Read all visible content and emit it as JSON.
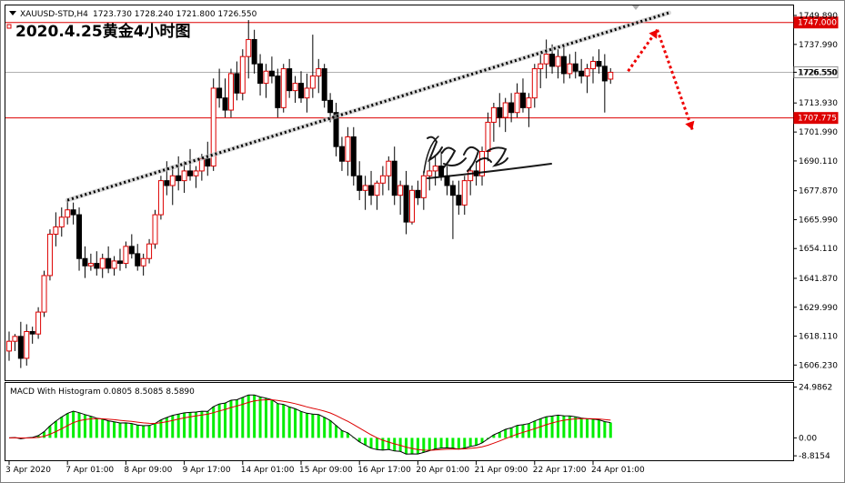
{
  "chart_data": {
    "type": "candlestick",
    "symbol_line": "XAUUSD-STD,H4",
    "ohlc_readout": "1723.730 1728.240 1721.800 1726.550",
    "headline": "2020.4.25黄金4小时图",
    "price_axis": {
      "range": [
        1600,
        1754
      ],
      "ticks": [
        "1749.890",
        "1737.990",
        "1726.550",
        "1713.930",
        "1701.990",
        "1690.110",
        "1677.870",
        "1665.990",
        "1654.110",
        "1641.870",
        "1629.990",
        "1618.110",
        "1606.230"
      ],
      "tick_values": [
        1749.89,
        1737.99,
        1726.55,
        1713.93,
        1701.99,
        1690.11,
        1677.87,
        1665.99,
        1654.11,
        1641.87,
        1629.99,
        1618.11,
        1606.23
      ]
    },
    "price_levels": [
      {
        "label": "1747.000",
        "value": 1747.0,
        "color": "#dd0000"
      },
      {
        "label": "1726.550",
        "value": 1726.55,
        "color": "#b0b0b0"
      },
      {
        "label": "1707.775",
        "value": 1707.775,
        "color": "#dd0000"
      }
    ],
    "time_axis_labels": [
      "3 Apr 2020",
      "7 Apr 01:00",
      "8 Apr 09:00",
      "9 Apr 17:00",
      "14 Apr 01:00",
      "15 Apr 09:00",
      "16 Apr 17:00",
      "20 Apr 01:00",
      "21 Apr 09:00",
      "22 Apr 17:00",
      "24 Apr 01:00"
    ],
    "time_axis_bar_index": [
      0,
      10,
      20,
      30,
      40,
      50,
      60,
      70,
      80,
      90,
      100
    ],
    "trend_line": {
      "from": {
        "bar": 10,
        "price": 1674
      },
      "to": {
        "bar": 113,
        "price": 1751
      }
    },
    "forecast_path": {
      "points": [
        {
          "bar": 106,
          "price": 1727
        },
        {
          "bar": 111,
          "price": 1744
        },
        {
          "bar": 117,
          "price": 1703
        }
      ]
    },
    "candles": [
      [
        1612,
        1620,
        1608,
        1616
      ],
      [
        1616,
        1619,
        1612,
        1618
      ],
      [
        1618,
        1624,
        1605,
        1609
      ],
      [
        1609,
        1623,
        1606,
        1620
      ],
      [
        1620,
        1622,
        1615,
        1619
      ],
      [
        1619,
        1630,
        1617,
        1628
      ],
      [
        1628,
        1645,
        1626,
        1643
      ],
      [
        1643,
        1662,
        1641,
        1660
      ],
      [
        1660,
        1669,
        1655,
        1663
      ],
      [
        1663,
        1671,
        1659,
        1667
      ],
      [
        1667,
        1674,
        1664,
        1670
      ],
      [
        1670,
        1673,
        1664,
        1668
      ],
      [
        1668,
        1671,
        1645,
        1650
      ],
      [
        1650,
        1655,
        1642,
        1647
      ],
      [
        1647,
        1652,
        1645,
        1648
      ],
      [
        1648,
        1653,
        1643,
        1646
      ],
      [
        1646,
        1652,
        1642,
        1650
      ],
      [
        1650,
        1655,
        1644,
        1646
      ],
      [
        1646,
        1651,
        1643,
        1649
      ],
      [
        1649,
        1654,
        1645,
        1648
      ],
      [
        1648,
        1657,
        1646,
        1655
      ],
      [
        1655,
        1660,
        1650,
        1652
      ],
      [
        1652,
        1656,
        1645,
        1647
      ],
      [
        1647,
        1652,
        1643,
        1650
      ],
      [
        1650,
        1658,
        1648,
        1656
      ],
      [
        1656,
        1670,
        1654,
        1668
      ],
      [
        1668,
        1684,
        1666,
        1682
      ],
      [
        1682,
        1690,
        1676,
        1680
      ],
      [
        1680,
        1688,
        1672,
        1684
      ],
      [
        1684,
        1692,
        1678,
        1682
      ],
      [
        1682,
        1690,
        1677,
        1686
      ],
      [
        1686,
        1695,
        1682,
        1684
      ],
      [
        1684,
        1688,
        1679,
        1686
      ],
      [
        1686,
        1693,
        1682,
        1691
      ],
      [
        1691,
        1698,
        1684,
        1688
      ],
      [
        1688,
        1724,
        1686,
        1720
      ],
      [
        1720,
        1728,
        1712,
        1716
      ],
      [
        1716,
        1724,
        1708,
        1711
      ],
      [
        1711,
        1728,
        1708,
        1726
      ],
      [
        1726,
        1731,
        1715,
        1718
      ],
      [
        1718,
        1736,
        1715,
        1733
      ],
      [
        1733,
        1748,
        1724,
        1740
      ],
      [
        1740,
        1744,
        1726,
        1730
      ],
      [
        1730,
        1734,
        1717,
        1722
      ],
      [
        1722,
        1730,
        1716,
        1727
      ],
      [
        1727,
        1733,
        1722,
        1725
      ],
      [
        1725,
        1728,
        1708,
        1712
      ],
      [
        1712,
        1730,
        1710,
        1728
      ],
      [
        1728,
        1732,
        1716,
        1719
      ],
      [
        1719,
        1725,
        1714,
        1722
      ],
      [
        1722,
        1727,
        1714,
        1716
      ],
      [
        1716,
        1726,
        1710,
        1720
      ],
      [
        1720,
        1742,
        1716,
        1725
      ],
      [
        1725,
        1732,
        1718,
        1728
      ],
      [
        1728,
        1730,
        1712,
        1715
      ],
      [
        1715,
        1718,
        1706,
        1710
      ],
      [
        1710,
        1714,
        1692,
        1696
      ],
      [
        1696,
        1700,
        1686,
        1690
      ],
      [
        1690,
        1704,
        1684,
        1700
      ],
      [
        1700,
        1704,
        1680,
        1684
      ],
      [
        1684,
        1690,
        1674,
        1678
      ],
      [
        1678,
        1684,
        1670,
        1680
      ],
      [
        1680,
        1686,
        1672,
        1676
      ],
      [
        1676,
        1682,
        1670,
        1681
      ],
      [
        1681,
        1688,
        1676,
        1684
      ],
      [
        1684,
        1692,
        1678,
        1690
      ],
      [
        1690,
        1696,
        1672,
        1676
      ],
      [
        1676,
        1682,
        1668,
        1680
      ],
      [
        1680,
        1686,
        1660,
        1665
      ],
      [
        1665,
        1680,
        1664,
        1678
      ],
      [
        1678,
        1682,
        1672,
        1675
      ],
      [
        1675,
        1686,
        1670,
        1684
      ],
      [
        1684,
        1690,
        1678,
        1686
      ],
      [
        1686,
        1692,
        1680,
        1688
      ],
      [
        1688,
        1694,
        1682,
        1684
      ],
      [
        1684,
        1688,
        1676,
        1680
      ],
      [
        1680,
        1682,
        1658,
        1676
      ],
      [
        1676,
        1682,
        1668,
        1672
      ],
      [
        1672,
        1684,
        1668,
        1682
      ],
      [
        1682,
        1688,
        1676,
        1686
      ],
      [
        1686,
        1690,
        1680,
        1684
      ],
      [
        1684,
        1696,
        1680,
        1694
      ],
      [
        1694,
        1710,
        1690,
        1706
      ],
      [
        1706,
        1714,
        1698,
        1712
      ],
      [
        1712,
        1718,
        1704,
        1708
      ],
      [
        1708,
        1716,
        1702,
        1714
      ],
      [
        1714,
        1718,
        1706,
        1710
      ],
      [
        1710,
        1722,
        1708,
        1718
      ],
      [
        1718,
        1724,
        1710,
        1712
      ],
      [
        1712,
        1718,
        1704,
        1716
      ],
      [
        1716,
        1730,
        1712,
        1728
      ],
      [
        1728,
        1734,
        1720,
        1730
      ],
      [
        1730,
        1740,
        1724,
        1734
      ],
      [
        1734,
        1738,
        1726,
        1729
      ],
      [
        1729,
        1736,
        1724,
        1733
      ],
      [
        1733,
        1737,
        1722,
        1726
      ],
      [
        1726,
        1734,
        1724,
        1730
      ],
      [
        1730,
        1735,
        1724,
        1727
      ],
      [
        1727,
        1732,
        1722,
        1725
      ],
      [
        1725,
        1730,
        1718,
        1728
      ],
      [
        1728,
        1733,
        1722,
        1731
      ],
      [
        1731,
        1736,
        1726,
        1729
      ],
      [
        1729,
        1734,
        1710,
        1723
      ],
      [
        1723.73,
        1728.24,
        1721.8,
        1726.55
      ]
    ],
    "macd": {
      "label": "MACD With Histogram 0.0805 8.5085 8.5890",
      "axis_labels": [
        "24.9862",
        "0.00",
        "-8.8154"
      ],
      "axis_values": [
        24.9862,
        0,
        -8.8154
      ],
      "range": [
        -11,
        27
      ],
      "line_color": "#000000",
      "signal_color": "#dd0000",
      "histogram_color": "#00ee00"
    }
  }
}
